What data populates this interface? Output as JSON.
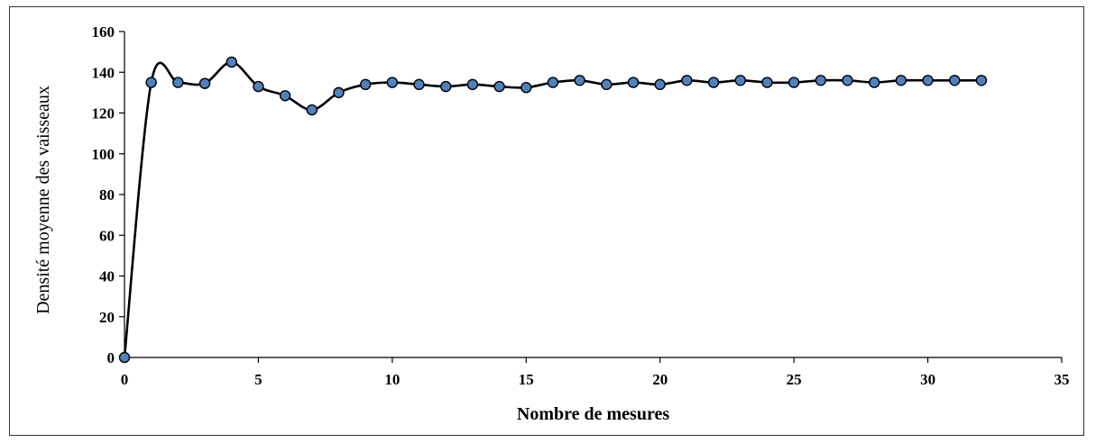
{
  "chart_data": {
    "type": "line",
    "title": "",
    "xlabel": "Nombre de mesures",
    "ylabel": "Densité moyenne des vaisseaux",
    "xlim": [
      0,
      35
    ],
    "ylim": [
      0,
      160
    ],
    "xticks": [
      0,
      5,
      10,
      15,
      20,
      25,
      30,
      35
    ],
    "yticks": [
      0,
      20,
      40,
      60,
      80,
      100,
      120,
      140,
      160
    ],
    "grid": false,
    "legend": "none",
    "series": [
      {
        "color": "#4f81bd",
        "line_color": "#000000",
        "marker": "circle",
        "smooth": true,
        "x": [
          0,
          1,
          2,
          3,
          4,
          5,
          6,
          7,
          8,
          9,
          10,
          11,
          12,
          13,
          14,
          15,
          16,
          17,
          18,
          19,
          20,
          21,
          22,
          23,
          24,
          25,
          26,
          27,
          28,
          29,
          30,
          31,
          32
        ],
        "y": [
          0,
          135,
          135,
          134.5,
          145,
          133,
          128.5,
          121.5,
          130,
          134,
          135,
          134,
          133,
          134,
          133,
          132.5,
          135,
          136,
          134,
          135,
          134,
          136,
          135,
          136,
          135,
          135,
          136,
          136,
          135,
          136,
          136,
          136,
          136
        ]
      }
    ]
  }
}
